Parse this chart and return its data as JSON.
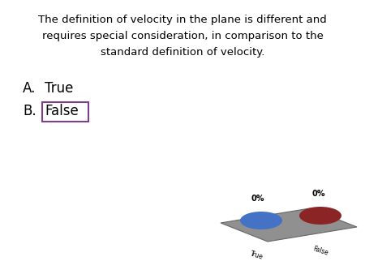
{
  "title_line1": "The definition of velocity in the plane is different and",
  "title_line2": "requires special consideration, in comparison to the",
  "title_line3": "standard definition of velocity.",
  "option_a_letter": "A.",
  "option_a_text": "True",
  "option_b_letter": "B.",
  "option_b_text": "False",
  "background_color": "#ffffff",
  "text_color": "#000000",
  "title_fontsize": 9.5,
  "option_fontsize": 12,
  "box_color": "#7B3F8B",
  "bar_bg_color": "#909090",
  "bar_edge_color": "#666666",
  "dot_true_color": "#4472C4",
  "dot_false_color": "#8B2525",
  "pct_true": "0%",
  "pct_false": "0%",
  "label_true": "True",
  "label_false": "False",
  "pct_fontsize": 7,
  "label_fontsize": 5.5,
  "fig_width": 4.5,
  "fig_height": 3.38,
  "dpi": 100
}
